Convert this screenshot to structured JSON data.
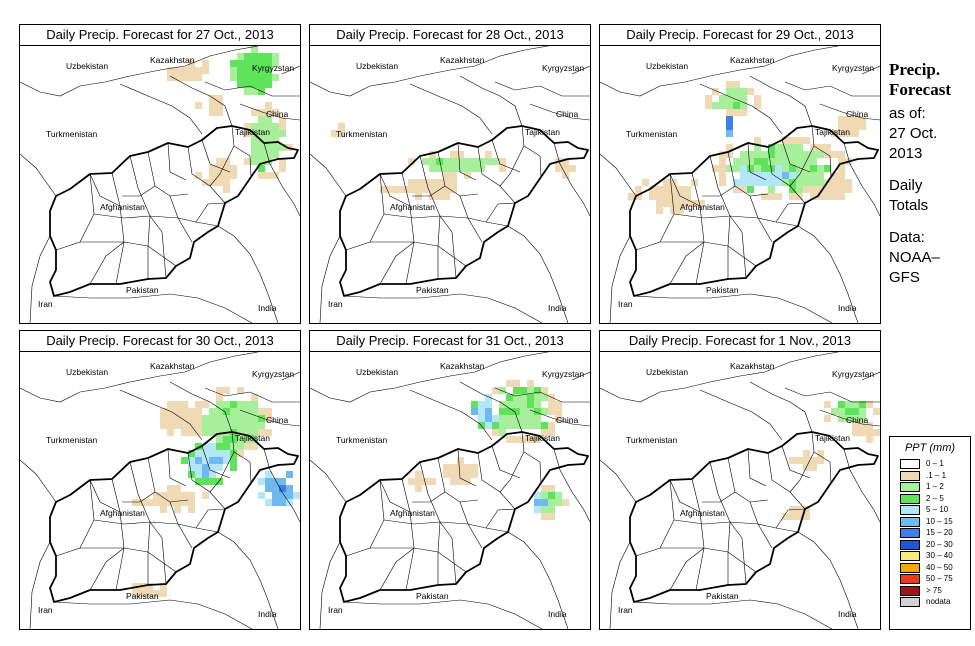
{
  "panels": [
    {
      "title": "Daily Precip. Forecast for  27 Oct., 2013",
      "pattern": 0
    },
    {
      "title": "Daily Precip. Forecast for  28 Oct., 2013",
      "pattern": 1
    },
    {
      "title": "Daily Precip. Forecast for  29 Oct., 2013",
      "pattern": 2
    },
    {
      "title": "Daily Precip. Forecast for  30 Oct., 2013",
      "pattern": 3
    },
    {
      "title": "Daily Precip. Forecast for  31 Oct., 2013",
      "pattern": 4
    },
    {
      "title": "Daily Precip. Forecast for  1 Nov., 2013",
      "pattern": 5
    }
  ],
  "map_labels": {
    "uzbekistan": "Uzbekistan",
    "kazakhstan": "Kazakhstan",
    "kyrgyzstan": "Kyrgyzstan",
    "china": "China",
    "turkmenistan": "Turkmenistan",
    "tajikistan": "Tajikistan",
    "afghanistan": "Afghanistan",
    "pakistan": "Pakistan",
    "iran": "Iran",
    "india": "India"
  },
  "side": {
    "title_line1": "Precip.",
    "title_line2": "Forecast",
    "asof_line1": "as of:",
    "asof_line2": "27 Oct.",
    "asof_line3": "2013",
    "totals_line1": "Daily",
    "totals_line2": "Totals",
    "data_line1": "Data:",
    "data_line2": "NOAA–",
    "data_line3": "GFS"
  },
  "legend": {
    "title": "PPT (mm)",
    "items": [
      {
        "label": "0 – 1",
        "color": "#ffffff"
      },
      {
        "label": ".1 – 1",
        "color": "#f0d9b5"
      },
      {
        "label": "1 – 2",
        "color": "#a7ef9a"
      },
      {
        "label": "2 – 5",
        "color": "#5fe35a"
      },
      {
        "label": "5 – 10",
        "color": "#b3e6f7"
      },
      {
        "label": "10 – 15",
        "color": "#70b9ef"
      },
      {
        "label": "15 – 20",
        "color": "#3f7fe8"
      },
      {
        "label": "20 – 30",
        "color": "#1f55d6"
      },
      {
        "label": "30 – 40",
        "color": "#f7ec7a"
      },
      {
        "label": "40 – 50",
        "color": "#f5a800"
      },
      {
        "label": "50 – 75",
        "color": "#ee3a1a"
      },
      {
        "label": "> 75",
        "color": "#a0141c"
      },
      {
        "label": "nodata",
        "color": "#d2d2d2"
      }
    ]
  }
}
